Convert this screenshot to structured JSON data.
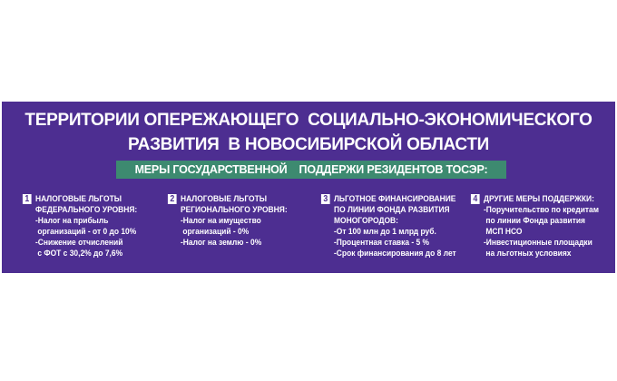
{
  "title": {
    "line1": "ТЕРРИТОРИИ ОПЕРЕЖАЮЩЕГО  СОЦИАЛЬНО-ЭКОНОМИЧЕСКОГО",
    "line2": "РАЗВИТИЯ  В НОВОСИБИРСКОЙ ОБЛАСТИ"
  },
  "subtitle": "МЕРЫ ГОСУДАРСТВЕННОЙ    ПОДДЕРЖИ РЕЗИДЕНТОВ ТОСЭР:",
  "colors": {
    "background": "#4d2e91",
    "subtitle_bg": "#3d8a70",
    "text": "#ffffff"
  },
  "columns": [
    {
      "number": "1",
      "lines": [
        "НАЛОГОВЫЕ ЛЬГОТЫ",
        "ФЕДЕРАЛЬНОГО УРОВНЯ:",
        "-Налог на прибыль",
        " организаций - от 0 до 10%",
        "-Снижение отчислений",
        " с ФОТ с 30,2% до 7,6%"
      ]
    },
    {
      "number": "2",
      "lines": [
        "НАЛОГОВЫЕ ЛЬГОТЫ",
        "РЕГИОНАЛЬНОГО УРОВНЯ:",
        "-Налог на имущество",
        " организаций - 0%",
        "-Налог на землю - 0%"
      ]
    },
    {
      "number": "3",
      "lines": [
        "ЛЬГОТНОЕ ФИНАНСИРОВАНИЕ",
        "ПО ЛИНИИ ФОНДА РАЗВИТИЯ",
        "МОНОГОРОДОВ:",
        "-От 100 млн до 1 млрд руб.",
        "-Процентная ставка - 5 %",
        "-Срок финансирования до 8 лет"
      ]
    },
    {
      "number": "4",
      "lines": [
        "ДРУГИЕ МЕРЫ ПОДДЕРЖКИ:",
        "-Поручительство по кредитам",
        " по линии Фонда развития",
        " МСП НСО",
        "-Инвестиционные площадки",
        " на льготных условиях"
      ]
    }
  ]
}
